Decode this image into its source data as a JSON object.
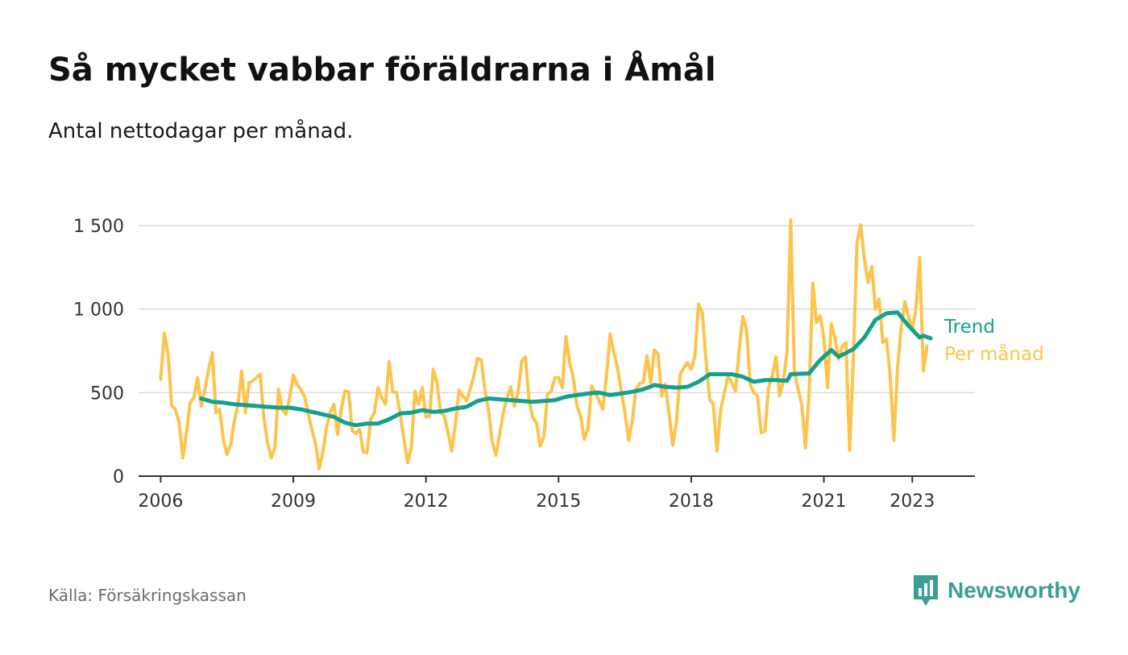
{
  "header": {
    "title": "Så mycket vabbar föräldrarna i Åmål",
    "subtitle": "Antal nettodagar per månad."
  },
  "footer": {
    "source": "Källa: Försäkringskassan",
    "brand": "Newsworthy"
  },
  "icons": {
    "logo": "newsworthy-bar-chart-icon"
  },
  "colors": {
    "monthly": "#fcc44c",
    "trend": "#16a08c",
    "grid": "#dcdcdc",
    "axis": "#333333",
    "brand": "#3a9e94"
  },
  "chart_data": {
    "type": "line",
    "xlabel": "",
    "ylabel": "",
    "ylim": [
      0,
      1600
    ],
    "xlim": [
      "2005-07",
      "2024-06"
    ],
    "y_ticks": [
      {
        "value": 0,
        "label": "0"
      },
      {
        "value": 500,
        "label": "500"
      },
      {
        "value": 1000,
        "label": "1 000"
      },
      {
        "value": 1500,
        "label": "1 500"
      }
    ],
    "x_ticks": [
      {
        "date": "2006-01",
        "label": "2006"
      },
      {
        "date": "2009-01",
        "label": "2009"
      },
      {
        "date": "2012-01",
        "label": "2012"
      },
      {
        "date": "2015-01",
        "label": "2015"
      },
      {
        "date": "2018-01",
        "label": "2018"
      },
      {
        "date": "2021-01",
        "label": "2021"
      },
      {
        "date": "2023-01",
        "label": "2023"
      }
    ],
    "grid": true,
    "legend": "inline-right",
    "series": [
      {
        "name": "Per månad",
        "color": "#fcc44c",
        "points": [
          [
            "2006-01",
            580
          ],
          [
            "2006-02",
            855
          ],
          [
            "2006-03",
            730
          ],
          [
            "2006-04",
            420
          ],
          [
            "2006-05",
            400
          ],
          [
            "2006-06",
            320
          ],
          [
            "2006-07",
            110
          ],
          [
            "2006-08",
            260
          ],
          [
            "2006-09",
            440
          ],
          [
            "2006-10",
            470
          ],
          [
            "2006-11",
            590
          ],
          [
            "2006-12",
            420
          ],
          [
            "2007-01",
            520
          ],
          [
            "2007-02",
            640
          ],
          [
            "2007-03",
            740
          ],
          [
            "2007-04",
            380
          ],
          [
            "2007-05",
            400
          ],
          [
            "2007-06",
            220
          ],
          [
            "2007-07",
            130
          ],
          [
            "2007-08",
            190
          ],
          [
            "2007-09",
            330
          ],
          [
            "2007-10",
            430
          ],
          [
            "2007-11",
            630
          ],
          [
            "2007-12",
            380
          ],
          [
            "2008-01",
            560
          ],
          [
            "2008-02",
            570
          ],
          [
            "2008-03",
            590
          ],
          [
            "2008-04",
            610
          ],
          [
            "2008-05",
            350
          ],
          [
            "2008-06",
            200
          ],
          [
            "2008-07",
            110
          ],
          [
            "2008-08",
            170
          ],
          [
            "2008-09",
            520
          ],
          [
            "2008-10",
            400
          ],
          [
            "2008-11",
            370
          ],
          [
            "2008-12",
            470
          ],
          [
            "2009-01",
            605
          ],
          [
            "2009-02",
            550
          ],
          [
            "2009-03",
            520
          ],
          [
            "2009-04",
            480
          ],
          [
            "2009-05",
            380
          ],
          [
            "2009-06",
            280
          ],
          [
            "2009-07",
            200
          ],
          [
            "2009-08",
            45
          ],
          [
            "2009-09",
            140
          ],
          [
            "2009-10",
            290
          ],
          [
            "2009-11",
            380
          ],
          [
            "2009-12",
            430
          ],
          [
            "2010-01",
            250
          ],
          [
            "2010-02",
            400
          ],
          [
            "2010-03",
            510
          ],
          [
            "2010-04",
            505
          ],
          [
            "2010-05",
            270
          ],
          [
            "2010-06",
            255
          ],
          [
            "2010-07",
            280
          ],
          [
            "2010-08",
            145
          ],
          [
            "2010-09",
            140
          ],
          [
            "2010-10",
            340
          ],
          [
            "2010-11",
            380
          ],
          [
            "2010-12",
            530
          ],
          [
            "2011-01",
            470
          ],
          [
            "2011-02",
            430
          ],
          [
            "2011-03",
            685
          ],
          [
            "2011-04",
            505
          ],
          [
            "2011-05",
            500
          ],
          [
            "2011-06",
            370
          ],
          [
            "2011-07",
            230
          ],
          [
            "2011-08",
            80
          ],
          [
            "2011-09",
            165
          ],
          [
            "2011-10",
            510
          ],
          [
            "2011-11",
            430
          ],
          [
            "2011-12",
            530
          ],
          [
            "2012-01",
            355
          ],
          [
            "2012-02",
            360
          ],
          [
            "2012-03",
            640
          ],
          [
            "2012-04",
            560
          ],
          [
            "2012-05",
            380
          ],
          [
            "2012-06",
            360
          ],
          [
            "2012-07",
            260
          ],
          [
            "2012-08",
            150
          ],
          [
            "2012-09",
            320
          ],
          [
            "2012-10",
            515
          ],
          [
            "2012-11",
            480
          ],
          [
            "2012-12",
            450
          ],
          [
            "2013-01",
            520
          ],
          [
            "2013-02",
            600
          ],
          [
            "2013-03",
            705
          ],
          [
            "2013-04",
            695
          ],
          [
            "2013-05",
            520
          ],
          [
            "2013-06",
            390
          ],
          [
            "2013-07",
            205
          ],
          [
            "2013-08",
            125
          ],
          [
            "2013-09",
            250
          ],
          [
            "2013-10",
            380
          ],
          [
            "2013-11",
            470
          ],
          [
            "2013-12",
            535
          ],
          [
            "2014-01",
            420
          ],
          [
            "2014-02",
            500
          ],
          [
            "2014-03",
            690
          ],
          [
            "2014-04",
            715
          ],
          [
            "2014-05",
            450
          ],
          [
            "2014-06",
            350
          ],
          [
            "2014-07",
            320
          ],
          [
            "2014-08",
            180
          ],
          [
            "2014-09",
            235
          ],
          [
            "2014-10",
            490
          ],
          [
            "2014-11",
            510
          ],
          [
            "2014-12",
            590
          ],
          [
            "2015-01",
            590
          ],
          [
            "2015-02",
            530
          ],
          [
            "2015-03",
            835
          ],
          [
            "2015-04",
            680
          ],
          [
            "2015-05",
            590
          ],
          [
            "2015-06",
            420
          ],
          [
            "2015-07",
            360
          ],
          [
            "2015-08",
            220
          ],
          [
            "2015-09",
            290
          ],
          [
            "2015-10",
            540
          ],
          [
            "2015-11",
            500
          ],
          [
            "2015-12",
            450
          ],
          [
            "2016-01",
            400
          ],
          [
            "2016-02",
            600
          ],
          [
            "2016-03",
            850
          ],
          [
            "2016-04",
            740
          ],
          [
            "2016-05",
            650
          ],
          [
            "2016-06",
            510
          ],
          [
            "2016-07",
            380
          ],
          [
            "2016-08",
            215
          ],
          [
            "2016-09",
            330
          ],
          [
            "2016-10",
            520
          ],
          [
            "2016-11",
            555
          ],
          [
            "2016-12",
            560
          ],
          [
            "2017-01",
            720
          ],
          [
            "2017-02",
            560
          ],
          [
            "2017-03",
            755
          ],
          [
            "2017-04",
            730
          ],
          [
            "2017-05",
            480
          ],
          [
            "2017-06",
            550
          ],
          [
            "2017-07",
            370
          ],
          [
            "2017-08",
            185
          ],
          [
            "2017-09",
            330
          ],
          [
            "2017-10",
            610
          ],
          [
            "2017-11",
            650
          ],
          [
            "2017-12",
            680
          ],
          [
            "2018-01",
            640
          ],
          [
            "2018-02",
            720
          ],
          [
            "2018-03",
            1030
          ],
          [
            "2018-04",
            980
          ],
          [
            "2018-05",
            700
          ],
          [
            "2018-06",
            460
          ],
          [
            "2018-07",
            430
          ],
          [
            "2018-08",
            150
          ],
          [
            "2018-09",
            400
          ],
          [
            "2018-10",
            500
          ],
          [
            "2018-11",
            600
          ],
          [
            "2018-12",
            560
          ],
          [
            "2019-01",
            510
          ],
          [
            "2019-02",
            750
          ],
          [
            "2019-03",
            955
          ],
          [
            "2019-04",
            880
          ],
          [
            "2019-05",
            550
          ],
          [
            "2019-06",
            500
          ],
          [
            "2019-07",
            480
          ],
          [
            "2019-08",
            260
          ],
          [
            "2019-09",
            270
          ],
          [
            "2019-10",
            530
          ],
          [
            "2019-11",
            600
          ],
          [
            "2019-12",
            715
          ],
          [
            "2020-01",
            480
          ],
          [
            "2020-02",
            570
          ],
          [
            "2020-03",
            740
          ],
          [
            "2020-04",
            1535
          ],
          [
            "2020-05",
            630
          ],
          [
            "2020-06",
            520
          ],
          [
            "2020-07",
            430
          ],
          [
            "2020-08",
            170
          ],
          [
            "2020-09",
            500
          ],
          [
            "2020-10",
            1155
          ],
          [
            "2020-11",
            920
          ],
          [
            "2020-12",
            960
          ],
          [
            "2021-01",
            830
          ],
          [
            "2021-02",
            530
          ],
          [
            "2021-03",
            910
          ],
          [
            "2021-04",
            830
          ],
          [
            "2021-05",
            700
          ],
          [
            "2021-06",
            780
          ],
          [
            "2021-07",
            800
          ],
          [
            "2021-08",
            155
          ],
          [
            "2021-09",
            700
          ],
          [
            "2021-10",
            1400
          ],
          [
            "2021-11",
            1505
          ],
          [
            "2021-12",
            1300
          ],
          [
            "2022-01",
            1160
          ],
          [
            "2022-02",
            1255
          ],
          [
            "2022-03",
            1000
          ],
          [
            "2022-04",
            1060
          ],
          [
            "2022-05",
            800
          ],
          [
            "2022-06",
            820
          ],
          [
            "2022-07",
            600
          ],
          [
            "2022-08",
            215
          ],
          [
            "2022-09",
            650
          ],
          [
            "2022-10",
            890
          ],
          [
            "2022-11",
            1045
          ],
          [
            "2022-12",
            950
          ],
          [
            "2023-01",
            880
          ],
          [
            "2023-02",
            1000
          ],
          [
            "2023-03",
            1310
          ],
          [
            "2023-04",
            630
          ],
          [
            "2023-05",
            780
          ]
        ]
      },
      {
        "name": "Trend",
        "color": "#16a08c",
        "points": [
          [
            "2006-12",
            465
          ],
          [
            "2007-03",
            445
          ],
          [
            "2007-06",
            440
          ],
          [
            "2007-09",
            430
          ],
          [
            "2007-12",
            425
          ],
          [
            "2008-03",
            420
          ],
          [
            "2008-06",
            415
          ],
          [
            "2008-09",
            410
          ],
          [
            "2008-12",
            410
          ],
          [
            "2009-03",
            400
          ],
          [
            "2009-06",
            385
          ],
          [
            "2009-09",
            370
          ],
          [
            "2009-12",
            355
          ],
          [
            "2010-03",
            320
          ],
          [
            "2010-06",
            305
          ],
          [
            "2010-09",
            315
          ],
          [
            "2010-12",
            315
          ],
          [
            "2011-03",
            340
          ],
          [
            "2011-06",
            375
          ],
          [
            "2011-09",
            380
          ],
          [
            "2011-12",
            395
          ],
          [
            "2012-03",
            385
          ],
          [
            "2012-06",
            390
          ],
          [
            "2012-09",
            405
          ],
          [
            "2012-12",
            415
          ],
          [
            "2013-03",
            450
          ],
          [
            "2013-06",
            465
          ],
          [
            "2013-09",
            460
          ],
          [
            "2013-12",
            455
          ],
          [
            "2014-03",
            450
          ],
          [
            "2014-06",
            445
          ],
          [
            "2014-09",
            450
          ],
          [
            "2014-12",
            455
          ],
          [
            "2015-03",
            475
          ],
          [
            "2015-06",
            485
          ],
          [
            "2015-09",
            495
          ],
          [
            "2015-12",
            500
          ],
          [
            "2016-03",
            485
          ],
          [
            "2016-06",
            495
          ],
          [
            "2016-09",
            505
          ],
          [
            "2016-12",
            520
          ],
          [
            "2017-03",
            545
          ],
          [
            "2017-06",
            535
          ],
          [
            "2017-09",
            530
          ],
          [
            "2017-12",
            535
          ],
          [
            "2018-03",
            565
          ],
          [
            "2018-06",
            610
          ],
          [
            "2018-09",
            610
          ],
          [
            "2018-12",
            610
          ],
          [
            "2019-03",
            595
          ],
          [
            "2019-06",
            565
          ],
          [
            "2019-09",
            575
          ],
          [
            "2019-12",
            575
          ],
          [
            "2020-03",
            570
          ],
          [
            "2020-04",
            610
          ],
          [
            "2020-09",
            615
          ],
          [
            "2020-12",
            695
          ],
          [
            "2021-03",
            755
          ],
          [
            "2021-05",
            715
          ],
          [
            "2021-09",
            760
          ],
          [
            "2021-12",
            830
          ],
          [
            "2022-03",
            935
          ],
          [
            "2022-06",
            975
          ],
          [
            "2022-09",
            980
          ],
          [
            "2022-12",
            900
          ],
          [
            "2023-03",
            830
          ],
          [
            "2023-04",
            840
          ],
          [
            "2023-06",
            825
          ]
        ]
      }
    ]
  }
}
